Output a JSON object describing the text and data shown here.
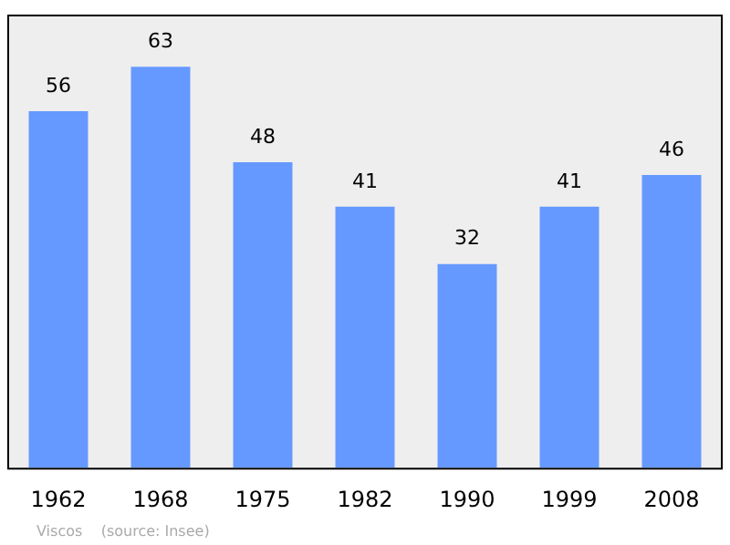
{
  "chart_data": {
    "type": "bar",
    "categories": [
      "1962",
      "1968",
      "1975",
      "1982",
      "1990",
      "1999",
      "2008"
    ],
    "values": [
      56,
      63,
      48,
      41,
      32,
      41,
      46
    ],
    "color": "#6699ff",
    "data_labels": true,
    "grid": false,
    "legend": false,
    "annotations": [
      "Viscos    (source: Insee)"
    ]
  }
}
